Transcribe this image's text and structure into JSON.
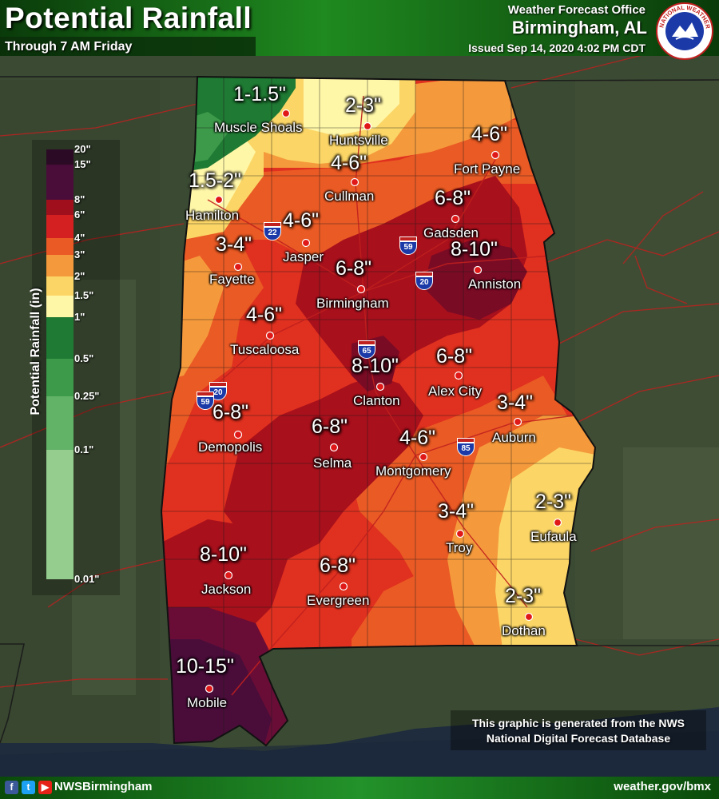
{
  "header": {
    "title": "Potential Rainfall",
    "subtitle": "Through 7 AM Friday",
    "office": "Weather Forecast Office",
    "city": "Birmingham, AL",
    "issued": "Issued Sep 14, 2020 4:02 PM CDT"
  },
  "logo": {
    "icon": "nws-logo-icon",
    "text": "NATIONAL WEATHER SERVICE"
  },
  "legend": {
    "title": "Potential Rainfall (in)",
    "levels": [
      {
        "label": "20\"",
        "color": "#2a0a24"
      },
      {
        "label": "15\"",
        "color": "#4a0d3a"
      },
      {
        "label": "8\"",
        "color": "#a0101c"
      },
      {
        "label": "6\"",
        "color": "#d42020"
      },
      {
        "label": "4\"",
        "color": "#ea5a24"
      },
      {
        "label": "3\"",
        "color": "#f59a3c"
      },
      {
        "label": "2\"",
        "color": "#fbd666"
      },
      {
        "label": "1.5\"",
        "color": "#fff7a8"
      },
      {
        "label": "1\"",
        "color": "#1f7a33"
      },
      {
        "label": "0.5\"",
        "color": "#3d9a4a"
      },
      {
        "label": "0.25\"",
        "color": "#62b267"
      },
      {
        "label": "0.1\"",
        "color": "#94cd8e"
      },
      {
        "label": "0.01\"",
        "color": "#cde9c6"
      }
    ]
  },
  "cities": [
    {
      "name": "Muscle Shoals",
      "amount": "1-1.5\""
    },
    {
      "name": "Huntsville",
      "amount": "2-3\""
    },
    {
      "name": "Fort Payne",
      "amount": "4-6\""
    },
    {
      "name": "Cullman",
      "amount": "4-6\""
    },
    {
      "name": "Hamilton",
      "amount": "1.5-2\""
    },
    {
      "name": "Gadsden",
      "amount": "6-8\""
    },
    {
      "name": "Jasper",
      "amount": "4-6\""
    },
    {
      "name": "Fayette",
      "amount": "3-4\""
    },
    {
      "name": "Anniston",
      "amount": "8-10\""
    },
    {
      "name": "Birmingham",
      "amount": "6-8\""
    },
    {
      "name": "Tuscaloosa",
      "amount": "4-6\""
    },
    {
      "name": "Clanton",
      "amount": "8-10\""
    },
    {
      "name": "Alex City",
      "amount": "6-8\""
    },
    {
      "name": "Auburn",
      "amount": "3-4\""
    },
    {
      "name": "Demopolis",
      "amount": "6-8\""
    },
    {
      "name": "Selma",
      "amount": "6-8\""
    },
    {
      "name": "Montgomery",
      "amount": "4-6\""
    },
    {
      "name": "Troy",
      "amount": "3-4\""
    },
    {
      "name": "Eufaula",
      "amount": "2-3\""
    },
    {
      "name": "Jackson",
      "amount": "8-10\""
    },
    {
      "name": "Evergreen",
      "amount": "6-8\""
    },
    {
      "name": "Dothan",
      "amount": "2-3\""
    },
    {
      "name": "Mobile",
      "amount": "10-15\""
    }
  ],
  "interstates": [
    {
      "number": "22"
    },
    {
      "number": "59"
    },
    {
      "number": "20"
    },
    {
      "number": "65"
    },
    {
      "number": "20"
    },
    {
      "number": "59"
    },
    {
      "number": "85"
    }
  ],
  "disclaimer": {
    "line1": "This graphic is generated from the NWS",
    "line2": "National Digital Forecast Database"
  },
  "footer": {
    "handle": "NWSBirmingham",
    "website": "weather.gov/bmx",
    "social": [
      {
        "icon": "facebook-icon",
        "glyph": "f",
        "color": "#3b5998"
      },
      {
        "icon": "twitter-icon",
        "glyph": "t",
        "color": "#1da1f2"
      },
      {
        "icon": "youtube-icon",
        "glyph": "▶",
        "color": "#e62117"
      }
    ]
  }
}
